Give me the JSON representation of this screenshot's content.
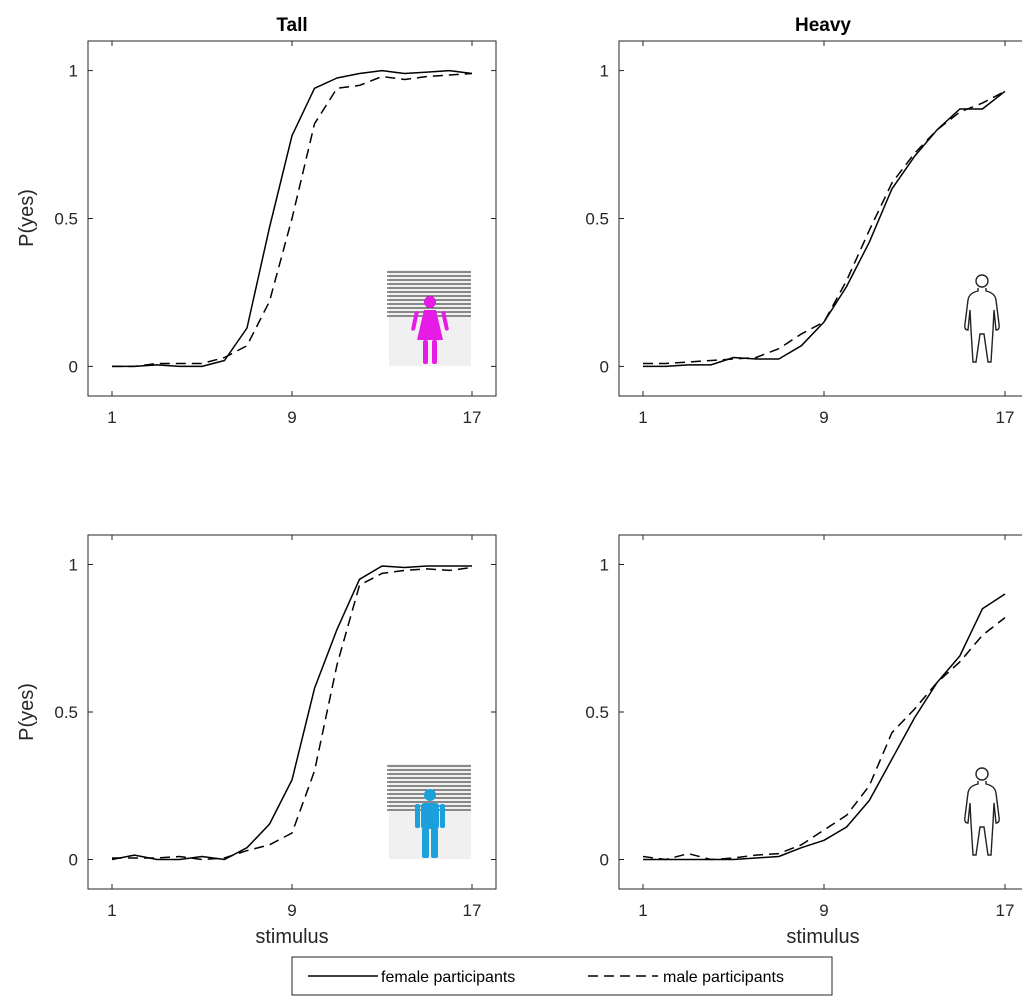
{
  "legend": {
    "entries": [
      {
        "label": "female participants",
        "style": "solid"
      },
      {
        "label": "male participants",
        "style": "dashed"
      }
    ]
  },
  "colors": {
    "female_icon": "#e61be6",
    "male_icon": "#1ba0dc",
    "line": "#000000"
  },
  "chart_data": [
    {
      "type": "line",
      "panel": "top-left",
      "title": "Tall",
      "ylabel": "P(yes)",
      "xlabel": "",
      "xlim": [
        1,
        17
      ],
      "ylim": [
        -0.1,
        1.1
      ],
      "xticks": [
        1,
        9,
        17
      ],
      "yticks": [
        0,
        0.5,
        1
      ],
      "icon": "female-height-chart-icon",
      "x": [
        1,
        2,
        3,
        4,
        5,
        6,
        7,
        8,
        9,
        10,
        11,
        12,
        13,
        14,
        15,
        16,
        17
      ],
      "series": [
        {
          "name": "female participants",
          "style": "solid",
          "values": [
            0,
            0,
            0.005,
            0,
            0,
            0.02,
            0.13,
            0.47,
            0.78,
            0.94,
            0.975,
            0.99,
            1,
            0.99,
            0.995,
            1,
            0.99
          ]
        },
        {
          "name": "male participants",
          "style": "dashed",
          "values": [
            0,
            0,
            0.01,
            0.01,
            0.01,
            0.03,
            0.07,
            0.22,
            0.5,
            0.82,
            0.94,
            0.95,
            0.98,
            0.97,
            0.98,
            0.985,
            0.99
          ]
        }
      ]
    },
    {
      "type": "line",
      "panel": "top-right",
      "title": "Heavy",
      "ylabel": "",
      "xlabel": "",
      "xlim": [
        1,
        17
      ],
      "ylim": [
        -0.1,
        1.1
      ],
      "xticks": [
        1,
        9,
        17
      ],
      "yticks": [
        0,
        0.5,
        1
      ],
      "icon": "body-outline-icon",
      "x": [
        1,
        2,
        3,
        4,
        5,
        6,
        7,
        8,
        9,
        10,
        11,
        12,
        13,
        14,
        15,
        16,
        17
      ],
      "series": [
        {
          "name": "female participants",
          "style": "solid",
          "values": [
            0,
            0,
            0.005,
            0.005,
            0.03,
            0.025,
            0.025,
            0.07,
            0.15,
            0.27,
            0.42,
            0.6,
            0.71,
            0.8,
            0.87,
            0.87,
            0.93
          ]
        },
        {
          "name": "male participants",
          "style": "dashed",
          "values": [
            0.01,
            0.01,
            0.015,
            0.02,
            0.025,
            0.03,
            0.06,
            0.11,
            0.15,
            0.29,
            0.46,
            0.62,
            0.72,
            0.8,
            0.86,
            0.89,
            0.93
          ]
        }
      ]
    },
    {
      "type": "line",
      "panel": "bottom-left",
      "title": "",
      "ylabel": "P(yes)",
      "xlabel": "stimulus",
      "xlim": [
        1,
        17
      ],
      "ylim": [
        -0.1,
        1.1
      ],
      "xticks": [
        1,
        9,
        17
      ],
      "yticks": [
        0,
        0.5,
        1
      ],
      "icon": "male-height-chart-icon",
      "x": [
        1,
        2,
        3,
        4,
        5,
        6,
        7,
        8,
        9,
        10,
        11,
        12,
        13,
        14,
        15,
        16,
        17
      ],
      "series": [
        {
          "name": "female participants",
          "style": "solid",
          "values": [
            0,
            0.015,
            0,
            0,
            0.01,
            0,
            0.04,
            0.12,
            0.27,
            0.58,
            0.78,
            0.95,
            0.995,
            0.99,
            0.995,
            0.995,
            0.995
          ]
        },
        {
          "name": "male participants",
          "style": "dashed",
          "values": [
            0.005,
            0.005,
            0.005,
            0.01,
            0,
            0.005,
            0.03,
            0.05,
            0.09,
            0.3,
            0.66,
            0.93,
            0.97,
            0.98,
            0.985,
            0.98,
            0.99
          ]
        }
      ]
    },
    {
      "type": "line",
      "panel": "bottom-right",
      "title": "",
      "ylabel": "",
      "xlabel": "stimulus",
      "xlim": [
        1,
        17
      ],
      "ylim": [
        -0.1,
        1.1
      ],
      "xticks": [
        1,
        9,
        17
      ],
      "yticks": [
        0,
        0.5,
        1
      ],
      "icon": "body-outline-icon",
      "x": [
        1,
        2,
        3,
        4,
        5,
        6,
        7,
        8,
        9,
        10,
        11,
        12,
        13,
        14,
        15,
        16,
        17
      ],
      "series": [
        {
          "name": "female participants",
          "style": "solid",
          "values": [
            0,
            0,
            0,
            0,
            0,
            0.005,
            0.01,
            0.04,
            0.065,
            0.11,
            0.2,
            0.34,
            0.48,
            0.6,
            0.69,
            0.85,
            0.9
          ]
        },
        {
          "name": "male participants",
          "style": "dashed",
          "values": [
            0.01,
            0,
            0.02,
            0,
            0.005,
            0.015,
            0.02,
            0.05,
            0.1,
            0.15,
            0.25,
            0.43,
            0.51,
            0.6,
            0.67,
            0.76,
            0.82
          ]
        }
      ]
    }
  ]
}
